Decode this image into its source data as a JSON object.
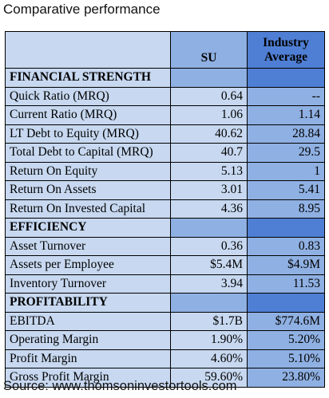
{
  "title": "Comparative performance",
  "source": "Source: www.thomsoninvestortools.com",
  "header": {
    "col1": "SU",
    "col2_line1": "Industry",
    "col2_line2": "Average"
  },
  "sections": [
    {
      "name": "FINANCIAL STRENGTH",
      "rows": [
        {
          "label": "Quick Ratio (MRQ)",
          "su": "0.64",
          "ind": "--"
        },
        {
          "label": "Current Ratio (MRQ)",
          "su": "1.06",
          "ind": "1.14"
        },
        {
          "label": "LT Debt to Equity (MRQ)",
          "su": "40.62",
          "ind": "28.84"
        },
        {
          "label": "Total Debt to Capital (MRQ)",
          "su": "40.7",
          "ind": "29.5"
        },
        {
          "label": "Return On Equity",
          "su": "5.13",
          "ind": "1"
        },
        {
          "label": "Return On Assets",
          "su": "3.01",
          "ind": "5.41"
        },
        {
          "label": "Return On Invested Capital",
          "su": "4.36",
          "ind": "8.95"
        }
      ]
    },
    {
      "name": "EFFICIENCY",
      "rows": [
        {
          "label": "Asset Turnover",
          "su": "0.36",
          "ind": "0.83"
        },
        {
          "label": "Assets per Employee",
          "su": "$5.4M",
          "ind": "$4.9M"
        },
        {
          "label": "Inventory Turnover",
          "su": "3.94",
          "ind": "11.53"
        }
      ]
    },
    {
      "name": "PROFITABILITY",
      "rows": [
        {
          "label": "EBITDA",
          "su": "$1.7B",
          "ind": "$774.6M"
        },
        {
          "label": "Operating Margin",
          "su": "1.90%",
          "ind": "5.20%"
        },
        {
          "label": "Profit Margin",
          "su": "4.60%",
          "ind": "5.10%"
        },
        {
          "label": "Gross Profit Margin",
          "su": "59.60%",
          "ind": "23.80%"
        }
      ]
    }
  ]
}
